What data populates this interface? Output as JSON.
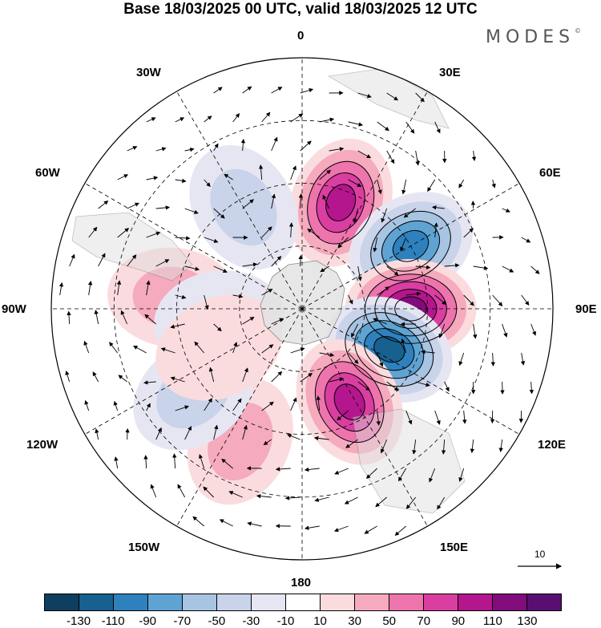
{
  "title": "Base 18/03/2025 00 UTC, valid 18/03/2025 12 UTC",
  "brand": "MODES",
  "brand_mark": "©",
  "longitude_labels": {
    "lon_0": "0",
    "lon_30e": "30E",
    "lon_60e": "60E",
    "lon_90e": "90E",
    "lon_120e": "120E",
    "lon_150e": "150E",
    "lon_180": "180",
    "lon_150w": "150W",
    "lon_120w": "120W",
    "lon_90w": "90W",
    "lon_60w": "60W",
    "lon_30w": "30W"
  },
  "reference_vector": "10",
  "colorbar": {
    "ticks": [
      "-130",
      "-110",
      "-90",
      "-70",
      "-50",
      "-30",
      "-10",
      "10",
      "30",
      "50",
      "70",
      "90",
      "110",
      "130"
    ],
    "colors": [
      "#0e3f5e",
      "#17608f",
      "#2e81bd",
      "#5fa3d3",
      "#a7c4e2",
      "#c9d3ea",
      "#e6e6f3",
      "#ffffff",
      "#fbdcde",
      "#f5aabd",
      "#ee74ad",
      "#d93ea0",
      "#b3168d",
      "#830c7c",
      "#590f72"
    ]
  },
  "anomaly_centers": [
    {
      "lon": 20,
      "colat": 27,
      "value": 100
    },
    {
      "lon": 60,
      "colat": 30,
      "value": -110
    },
    {
      "lon": 90,
      "colat": 26,
      "value": 130
    },
    {
      "lon": 115,
      "colat": 23,
      "value": -120
    },
    {
      "lon": 153,
      "colat": 25,
      "value": 100
    },
    {
      "lon": 205,
      "colat": 35,
      "value": 55
    },
    {
      "lon": 232,
      "colat": 33,
      "value": -55
    },
    {
      "lon": 275,
      "colat": 31,
      "value": 55
    },
    {
      "lon": 330,
      "colat": 28,
      "value": -45
    },
    {
      "lon": 262,
      "colat": 20,
      "value": -25
    },
    {
      "lon": 245,
      "colat": 22,
      "value": 25
    }
  ]
}
